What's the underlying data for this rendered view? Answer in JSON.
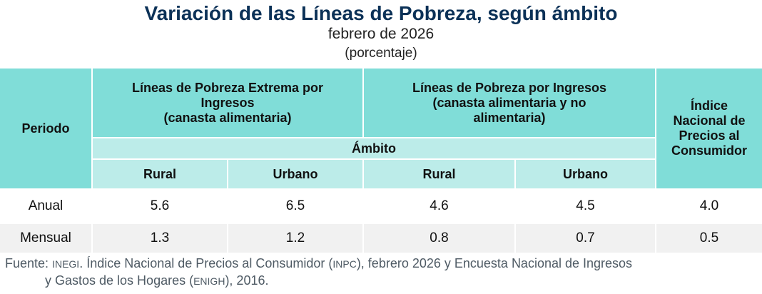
{
  "title": "Variación de las Líneas de Pobreza, según ámbito",
  "subtitle": "febrero de 2026",
  "unit": "(porcentaje)",
  "table": {
    "header": {
      "periodo": "Periodo",
      "group1": [
        "Líneas de Pobreza Extrema por",
        "Ingresos",
        "(canasta alimentaria)"
      ],
      "group2": [
        "Líneas de Pobreza por Ingresos",
        "(canasta alimentaria y no",
        "alimentaria)"
      ],
      "inpc": [
        "Índice",
        "Nacional de",
        "Precios al",
        "Consumidor"
      ],
      "ambito": "Ámbito",
      "sub": [
        "Rural",
        "Urbano",
        "Rural",
        "Urbano"
      ]
    },
    "rows": [
      {
        "periodo": "Anual",
        "values": [
          "5.6",
          "6.5",
          "4.6",
          "4.5",
          "4.0"
        ]
      },
      {
        "periodo": "Mensual",
        "values": [
          "1.3",
          "1.2",
          "0.8",
          "0.7",
          "0.5"
        ]
      }
    ]
  },
  "source": {
    "label": "Fuente:",
    "org": "INEGI",
    "text1": ". Índice Nacional de Precios al Consumidor (",
    "abbr1": "INPC",
    "text2": "), febrero 2026 y Encuesta Nacional de Ingresos",
    "line2a": "y Gastos de los Hogares (",
    "abbr2": "ENIGH",
    "line2b": "), 2016."
  },
  "colors": {
    "title": "#0b3157",
    "header_dark": "#80ddd8",
    "header_light": "#bcece9",
    "row_alt": "#f1f1f1"
  }
}
